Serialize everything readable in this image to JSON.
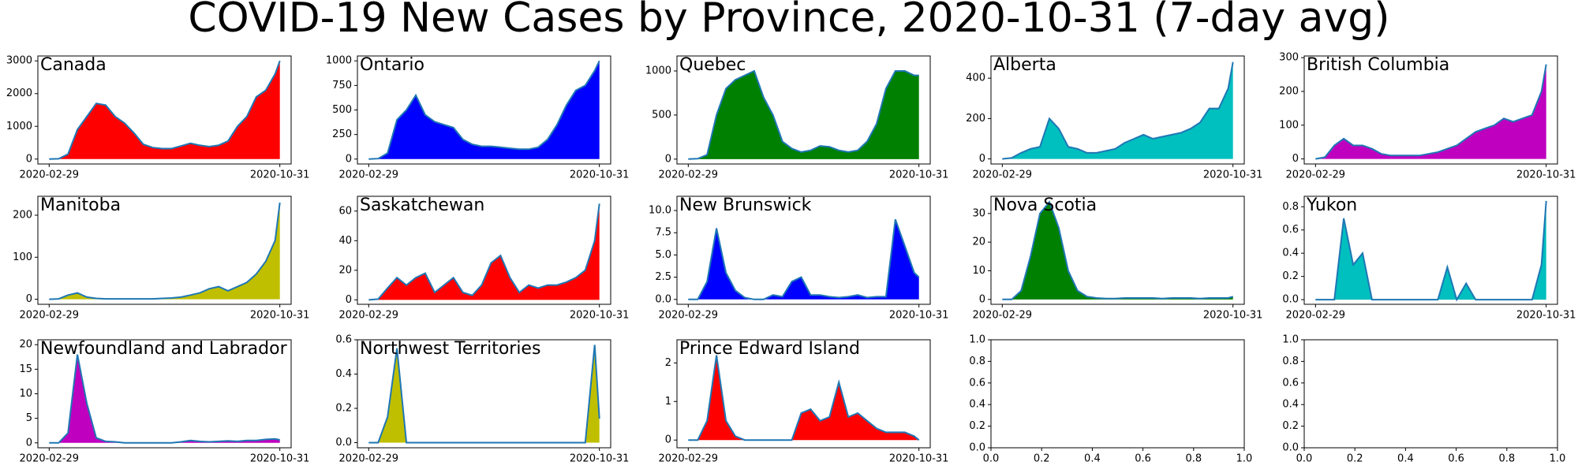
{
  "title": "COVID-19 New Cases by Province, 2020-10-31 (7-day avg)",
  "chart_data": [
    {
      "type": "area",
      "title": "Canada",
      "color": "#ff0000",
      "line_color": "#1f77b4",
      "x": [
        "2020-02-29",
        "2020-03-10",
        "2020-03-20",
        "2020-03-30",
        "2020-04-09",
        "2020-04-19",
        "2020-04-29",
        "2020-05-09",
        "2020-05-19",
        "2020-05-29",
        "2020-06-08",
        "2020-06-18",
        "2020-06-28",
        "2020-07-08",
        "2020-07-18",
        "2020-07-28",
        "2020-08-07",
        "2020-08-17",
        "2020-08-27",
        "2020-09-06",
        "2020-09-16",
        "2020-09-26",
        "2020-10-06",
        "2020-10-16",
        "2020-10-26",
        "2020-10-31"
      ],
      "values": [
        0,
        10,
        150,
        900,
        1300,
        1700,
        1650,
        1300,
        1100,
        800,
        450,
        350,
        320,
        320,
        400,
        480,
        420,
        380,
        420,
        550,
        1000,
        1300,
        1900,
        2100,
        2600,
        3000
      ],
      "xlim": [
        "2020-02-17",
        "2020-11-12"
      ],
      "xticks": [
        "2020-02-29",
        "2020-10-31"
      ],
      "ylim": [
        -150,
        3150
      ],
      "yticks": [
        0,
        1000,
        2000,
        3000
      ]
    },
    {
      "type": "area",
      "title": "Ontario",
      "color": "#0000ff",
      "line_color": "#1f77b4",
      "x": [
        "2020-02-29",
        "2020-03-10",
        "2020-03-20",
        "2020-03-30",
        "2020-04-09",
        "2020-04-19",
        "2020-04-29",
        "2020-05-09",
        "2020-05-19",
        "2020-05-29",
        "2020-06-08",
        "2020-06-18",
        "2020-06-28",
        "2020-07-08",
        "2020-07-18",
        "2020-07-28",
        "2020-08-07",
        "2020-08-17",
        "2020-08-27",
        "2020-09-06",
        "2020-09-16",
        "2020-09-26",
        "2020-10-06",
        "2020-10-16",
        "2020-10-26",
        "2020-10-31"
      ],
      "values": [
        0,
        5,
        60,
        400,
        500,
        650,
        450,
        380,
        350,
        320,
        200,
        150,
        130,
        130,
        120,
        110,
        100,
        100,
        120,
        200,
        350,
        550,
        700,
        750,
        900,
        1000
      ],
      "xlim": [
        "2020-02-17",
        "2020-11-12"
      ],
      "xticks": [
        "2020-02-29",
        "2020-10-31"
      ],
      "ylim": [
        -50,
        1050
      ],
      "yticks": [
        0,
        250,
        500,
        750,
        1000
      ]
    },
    {
      "type": "area",
      "title": "Quebec",
      "color": "#008000",
      "line_color": "#1f77b4",
      "x": [
        "2020-02-29",
        "2020-03-10",
        "2020-03-20",
        "2020-03-30",
        "2020-04-09",
        "2020-04-19",
        "2020-04-29",
        "2020-05-09",
        "2020-05-19",
        "2020-05-29",
        "2020-06-08",
        "2020-06-18",
        "2020-06-28",
        "2020-07-08",
        "2020-07-18",
        "2020-07-28",
        "2020-08-07",
        "2020-08-17",
        "2020-08-27",
        "2020-09-06",
        "2020-09-16",
        "2020-09-26",
        "2020-10-06",
        "2020-10-16",
        "2020-10-26",
        "2020-10-31"
      ],
      "values": [
        0,
        5,
        50,
        500,
        800,
        900,
        950,
        1000,
        700,
        500,
        200,
        120,
        80,
        100,
        150,
        140,
        100,
        80,
        100,
        200,
        400,
        800,
        1000,
        1000,
        950,
        950
      ],
      "xlim": [
        "2020-02-17",
        "2020-11-12"
      ],
      "xticks": [
        "2020-02-29",
        "2020-10-31"
      ],
      "ylim": [
        -55,
        1170
      ],
      "yticks": [
        0,
        500,
        1000
      ]
    },
    {
      "type": "area",
      "title": "Alberta",
      "color": "#00bfbf",
      "line_color": "#1f77b4",
      "x": [
        "2020-02-29",
        "2020-03-10",
        "2020-03-20",
        "2020-03-30",
        "2020-04-09",
        "2020-04-19",
        "2020-04-29",
        "2020-05-09",
        "2020-05-19",
        "2020-05-29",
        "2020-06-08",
        "2020-06-18",
        "2020-06-28",
        "2020-07-08",
        "2020-07-18",
        "2020-07-28",
        "2020-08-07",
        "2020-08-17",
        "2020-08-27",
        "2020-09-06",
        "2020-09-16",
        "2020-09-26",
        "2020-10-06",
        "2020-10-16",
        "2020-10-26",
        "2020-10-31"
      ],
      "values": [
        0,
        5,
        30,
        50,
        60,
        200,
        150,
        60,
        50,
        30,
        30,
        40,
        50,
        80,
        100,
        120,
        100,
        110,
        120,
        130,
        150,
        180,
        250,
        250,
        350,
        480
      ],
      "xlim": [
        "2020-02-17",
        "2020-11-12"
      ],
      "xticks": [
        "2020-02-29",
        "2020-10-31"
      ],
      "ylim": [
        -25,
        510
      ],
      "yticks": [
        0,
        200,
        400
      ]
    },
    {
      "type": "area",
      "title": "British Columbia",
      "color": "#bf00bf",
      "line_color": "#1f77b4",
      "x": [
        "2020-02-29",
        "2020-03-10",
        "2020-03-20",
        "2020-03-30",
        "2020-04-09",
        "2020-04-19",
        "2020-04-29",
        "2020-05-09",
        "2020-05-19",
        "2020-05-29",
        "2020-06-08",
        "2020-06-18",
        "2020-06-28",
        "2020-07-08",
        "2020-07-18",
        "2020-07-28",
        "2020-08-07",
        "2020-08-17",
        "2020-08-27",
        "2020-09-06",
        "2020-09-16",
        "2020-09-26",
        "2020-10-06",
        "2020-10-16",
        "2020-10-26",
        "2020-10-31"
      ],
      "values": [
        0,
        5,
        40,
        60,
        40,
        40,
        30,
        15,
        10,
        10,
        10,
        10,
        15,
        20,
        30,
        40,
        60,
        80,
        90,
        100,
        120,
        110,
        120,
        130,
        200,
        280
      ],
      "xlim": [
        "2020-02-17",
        "2020-11-12"
      ],
      "xticks": [
        "2020-02-29",
        "2020-10-31"
      ],
      "ylim": [
        -15,
        305
      ],
      "yticks": [
        0,
        100,
        200,
        300
      ]
    },
    {
      "type": "area",
      "title": "Manitoba",
      "color": "#bfbf00",
      "line_color": "#1f77b4",
      "x": [
        "2020-02-29",
        "2020-03-10",
        "2020-03-20",
        "2020-03-30",
        "2020-04-09",
        "2020-04-19",
        "2020-04-29",
        "2020-05-09",
        "2020-05-19",
        "2020-05-29",
        "2020-06-08",
        "2020-06-18",
        "2020-06-28",
        "2020-07-08",
        "2020-07-18",
        "2020-07-28",
        "2020-08-07",
        "2020-08-17",
        "2020-08-27",
        "2020-09-06",
        "2020-09-16",
        "2020-09-26",
        "2020-10-06",
        "2020-10-16",
        "2020-10-26",
        "2020-10-31"
      ],
      "values": [
        0,
        1,
        10,
        15,
        5,
        2,
        1,
        1,
        1,
        1,
        1,
        1,
        2,
        3,
        5,
        10,
        15,
        25,
        30,
        20,
        30,
        40,
        60,
        90,
        140,
        230
      ],
      "xlim": [
        "2020-02-17",
        "2020-11-12"
      ],
      "xticks": [
        "2020-02-29",
        "2020-10-31"
      ],
      "ylim": [
        -12,
        245
      ],
      "yticks": [
        0,
        100,
        200
      ]
    },
    {
      "type": "area",
      "title": "Saskatchewan",
      "color": "#ff0000",
      "line_color": "#1f77b4",
      "x": [
        "2020-02-29",
        "2020-03-10",
        "2020-03-20",
        "2020-03-30",
        "2020-04-09",
        "2020-04-19",
        "2020-04-29",
        "2020-05-09",
        "2020-05-19",
        "2020-05-29",
        "2020-06-08",
        "2020-06-18",
        "2020-06-28",
        "2020-07-08",
        "2020-07-18",
        "2020-07-28",
        "2020-08-07",
        "2020-08-17",
        "2020-08-27",
        "2020-09-06",
        "2020-09-16",
        "2020-09-26",
        "2020-10-06",
        "2020-10-16",
        "2020-10-26",
        "2020-10-31"
      ],
      "values": [
        0,
        0.5,
        8,
        15,
        10,
        15,
        18,
        5,
        10,
        15,
        5,
        3,
        10,
        25,
        30,
        15,
        5,
        10,
        8,
        10,
        10,
        12,
        15,
        20,
        40,
        65
      ],
      "xlim": [
        "2020-02-17",
        "2020-11-12"
      ],
      "xticks": [
        "2020-02-29",
        "2020-10-31"
      ],
      "ylim": [
        -3,
        70
      ],
      "yticks": [
        0,
        20,
        40,
        60
      ]
    },
    {
      "type": "area",
      "title": "New Brunswick",
      "color": "#0000ff",
      "line_color": "#1f77b4",
      "x": [
        "2020-02-29",
        "2020-03-10",
        "2020-03-20",
        "2020-03-30",
        "2020-04-09",
        "2020-04-19",
        "2020-04-29",
        "2020-05-09",
        "2020-05-19",
        "2020-05-29",
        "2020-06-08",
        "2020-06-18",
        "2020-06-28",
        "2020-07-08",
        "2020-07-18",
        "2020-07-28",
        "2020-08-07",
        "2020-08-17",
        "2020-08-27",
        "2020-09-06",
        "2020-09-16",
        "2020-09-26",
        "2020-10-06",
        "2020-10-16",
        "2020-10-26",
        "2020-10-31"
      ],
      "values": [
        0,
        0,
        2,
        8,
        3,
        1,
        0.2,
        0,
        0,
        0.5,
        0.3,
        2,
        2.5,
        0.5,
        0.5,
        0.3,
        0.2,
        0.3,
        0.5,
        0.2,
        0.3,
        0.3,
        9,
        6,
        3,
        2.5
      ],
      "xlim": [
        "2020-02-17",
        "2020-11-12"
      ],
      "xticks": [
        "2020-02-29",
        "2020-10-31"
      ],
      "ylim": [
        -0.55,
        11.6
      ],
      "yticks": [
        {
          "value": 0,
          "label": "0.0"
        },
        2.5,
        {
          "value": 5,
          "label": "5.0"
        },
        7.5,
        {
          "value": 10,
          "label": "10.0"
        }
      ]
    },
    {
      "type": "area",
      "title": "Nova Scotia",
      "color": "#008000",
      "line_color": "#1f77b4",
      "x": [
        "2020-02-29",
        "2020-03-10",
        "2020-03-20",
        "2020-03-30",
        "2020-04-09",
        "2020-04-19",
        "2020-04-29",
        "2020-05-09",
        "2020-05-19",
        "2020-05-29",
        "2020-06-08",
        "2020-06-18",
        "2020-06-28",
        "2020-07-08",
        "2020-07-18",
        "2020-07-28",
        "2020-08-07",
        "2020-08-17",
        "2020-08-27",
        "2020-09-06",
        "2020-09-16",
        "2020-09-26",
        "2020-10-06",
        "2020-10-16",
        "2020-10-26",
        "2020-10-31"
      ],
      "values": [
        0,
        0,
        3,
        15,
        30,
        34,
        25,
        10,
        3,
        1,
        0.5,
        0.3,
        0.3,
        0.5,
        0.5,
        0.5,
        0.5,
        0.3,
        0.5,
        0.5,
        0.5,
        0.3,
        0.5,
        0.5,
        0.5,
        1
      ],
      "xlim": [
        "2020-02-17",
        "2020-11-12"
      ],
      "xticks": [
        "2020-02-29",
        "2020-10-31"
      ],
      "ylim": [
        -1.7,
        36
      ],
      "yticks": [
        0,
        10,
        20,
        30
      ]
    },
    {
      "type": "area",
      "title": "Yukon",
      "color": "#00bfbf",
      "line_color": "#1f77b4",
      "x": [
        "2020-02-29",
        "2020-03-10",
        "2020-03-20",
        "2020-03-30",
        "2020-04-09",
        "2020-04-19",
        "2020-04-29",
        "2020-05-09",
        "2020-05-19",
        "2020-05-29",
        "2020-06-08",
        "2020-06-18",
        "2020-06-28",
        "2020-07-08",
        "2020-07-18",
        "2020-07-28",
        "2020-08-07",
        "2020-08-17",
        "2020-08-27",
        "2020-09-06",
        "2020-09-16",
        "2020-09-26",
        "2020-10-06",
        "2020-10-16",
        "2020-10-26",
        "2020-10-31"
      ],
      "values": [
        0,
        0,
        0,
        0.7,
        0.3,
        0.4,
        0,
        0,
        0,
        0,
        0,
        0,
        0,
        0,
        0.28,
        0,
        0.14,
        0,
        0,
        0,
        0,
        0,
        0,
        0,
        0.3,
        0.85
      ],
      "xlim": [
        "2020-02-17",
        "2020-11-12"
      ],
      "xticks": [
        "2020-02-29",
        "2020-10-31"
      ],
      "ylim": [
        -0.04,
        0.89
      ],
      "yticks": [
        {
          "value": 0,
          "label": "0.0"
        },
        0.2,
        0.4,
        0.6,
        0.8
      ]
    },
    {
      "type": "area",
      "title": "Newfoundland and Labrador",
      "color": "#bf00bf",
      "line_color": "#1f77b4",
      "x": [
        "2020-02-29",
        "2020-03-10",
        "2020-03-20",
        "2020-03-30",
        "2020-04-09",
        "2020-04-19",
        "2020-04-29",
        "2020-05-09",
        "2020-05-19",
        "2020-05-29",
        "2020-06-08",
        "2020-06-18",
        "2020-06-28",
        "2020-07-08",
        "2020-07-18",
        "2020-07-28",
        "2020-08-07",
        "2020-08-17",
        "2020-08-27",
        "2020-09-06",
        "2020-09-16",
        "2020-09-26",
        "2020-10-06",
        "2020-10-16",
        "2020-10-26",
        "2020-10-31"
      ],
      "values": [
        0,
        0,
        2,
        18,
        8,
        1,
        0.3,
        0.2,
        0,
        0,
        0,
        0,
        0,
        0,
        0.2,
        0.5,
        0.3,
        0.2,
        0.3,
        0.4,
        0.3,
        0.5,
        0.5,
        0.7,
        0.8,
        0.6
      ],
      "xlim": [
        "2020-02-17",
        "2020-11-12"
      ],
      "xticks": [
        "2020-02-29",
        "2020-10-31"
      ],
      "ylim": [
        -1,
        21
      ],
      "yticks": [
        0,
        5,
        10,
        15,
        20
      ]
    },
    {
      "type": "area",
      "title": "Northwest Territories",
      "color": "#bfbf00",
      "line_color": "#1f77b4",
      "x": [
        "2020-02-29",
        "2020-03-10",
        "2020-03-20",
        "2020-03-30",
        "2020-04-09",
        "2020-04-19",
        "2020-04-29",
        "2020-05-09",
        "2020-05-19",
        "2020-05-29",
        "2020-06-08",
        "2020-06-18",
        "2020-06-28",
        "2020-07-08",
        "2020-07-18",
        "2020-07-28",
        "2020-08-07",
        "2020-08-17",
        "2020-08-27",
        "2020-09-06",
        "2020-09-16",
        "2020-09-26",
        "2020-10-06",
        "2020-10-16",
        "2020-10-26",
        "2020-10-31"
      ],
      "values": [
        0,
        0,
        0.15,
        0.55,
        0,
        0,
        0,
        0,
        0,
        0,
        0,
        0,
        0,
        0,
        0,
        0,
        0,
        0,
        0,
        0,
        0,
        0,
        0,
        0,
        0.57,
        0.14
      ],
      "xlim": [
        "2020-02-17",
        "2020-11-12"
      ],
      "xticks": [
        "2020-02-29",
        "2020-10-31"
      ],
      "ylim": [
        -0.03,
        0.6
      ],
      "yticks": [
        {
          "value": 0,
          "label": "0.0"
        },
        0.2,
        0.4,
        0.6
      ]
    },
    {
      "type": "area",
      "title": "Prince Edward Island",
      "color": "#ff0000",
      "line_color": "#1f77b4",
      "x": [
        "2020-02-29",
        "2020-03-10",
        "2020-03-20",
        "2020-03-30",
        "2020-04-09",
        "2020-04-19",
        "2020-04-29",
        "2020-05-09",
        "2020-05-19",
        "2020-05-29",
        "2020-06-08",
        "2020-06-18",
        "2020-06-28",
        "2020-07-08",
        "2020-07-18",
        "2020-07-28",
        "2020-08-07",
        "2020-08-17",
        "2020-08-27",
        "2020-09-06",
        "2020-09-16",
        "2020-09-26",
        "2020-10-06",
        "2020-10-16",
        "2020-10-26",
        "2020-10-31"
      ],
      "values": [
        0,
        0,
        0.5,
        2.2,
        0.5,
        0.1,
        0,
        0,
        0,
        0,
        0,
        0,
        0.7,
        0.8,
        0.5,
        0.6,
        1.5,
        0.6,
        0.7,
        0.5,
        0.3,
        0.2,
        0.2,
        0.2,
        0.1,
        0
      ],
      "xlim": [
        "2020-02-17",
        "2020-11-12"
      ],
      "xticks": [
        "2020-02-29",
        "2020-10-31"
      ],
      "ylim": [
        -0.2,
        2.6
      ],
      "yticks": [
        0,
        1,
        2
      ]
    },
    {
      "type": "empty",
      "xlim": [
        0,
        1
      ],
      "ylim": [
        0,
        1
      ],
      "xticks": [
        {
          "value": 0,
          "label": "0.0"
        },
        0.2,
        0.4,
        0.6,
        0.8,
        {
          "value": 1,
          "label": "1.0"
        }
      ],
      "yticks": [
        {
          "value": 0,
          "label": "0.0"
        },
        0.2,
        0.4,
        0.6,
        0.8,
        {
          "value": 1,
          "label": "1.0"
        }
      ]
    },
    {
      "type": "empty",
      "xlim": [
        0,
        1
      ],
      "ylim": [
        0,
        1
      ],
      "xticks": [
        {
          "value": 0,
          "label": "0.0"
        },
        0.2,
        0.4,
        0.6,
        0.8,
        {
          "value": 1,
          "label": "1.0"
        }
      ],
      "yticks": [
        {
          "value": 0,
          "label": "0.0"
        },
        0.2,
        0.4,
        0.6,
        0.8,
        {
          "value": 1,
          "label": "1.0"
        }
      ]
    }
  ]
}
